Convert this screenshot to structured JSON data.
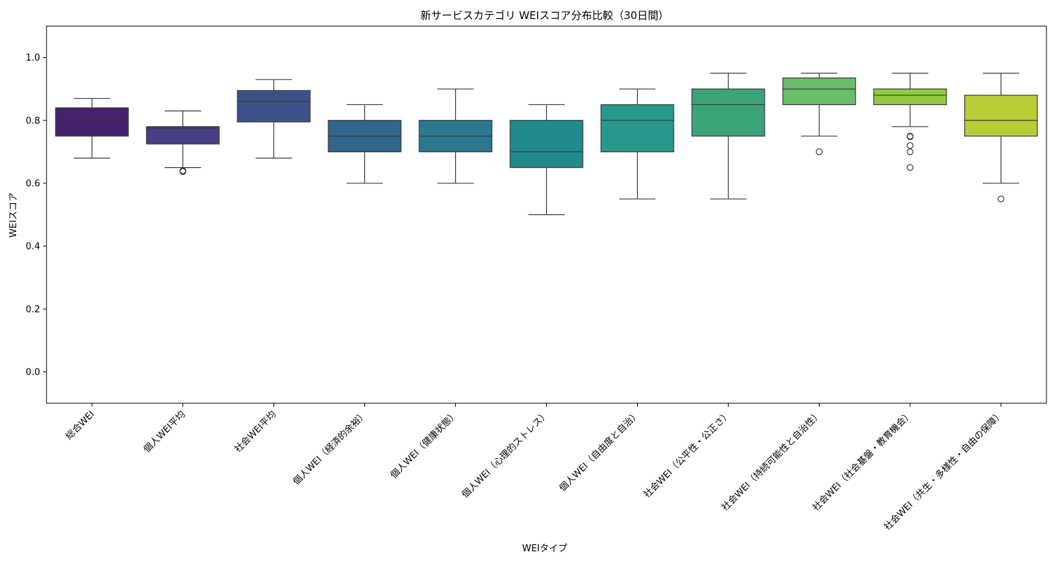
{
  "chart_data": {
    "type": "box",
    "title": "新サービスカテゴリ WEIスコア分布比較（30日間）",
    "xlabel": "WEIタイプ",
    "ylabel": "WEIスコア",
    "ylim": [
      -0.1,
      1.1
    ],
    "yticks": [
      "0.0",
      "0.2",
      "0.4",
      "0.6",
      "0.8",
      "1.0"
    ],
    "grid": false,
    "categories": [
      "総合WEI",
      "個人WEI平均",
      "社会WEI平均",
      "個人WEI（経済的余裕）",
      "個人WEI（健康状態）",
      "個人WEI（心理的ストレス）",
      "個人WEI（自由度と自治）",
      "社会WEI（公平性・公正さ）",
      "社会WEI（持続可能性と自治性）",
      "社会WEI（社会基盤・教育機会）",
      "社会WEI（共生・多様性・自由の保障）"
    ],
    "colors": [
      "#45216e",
      "#453f86",
      "#3d5188",
      "#32668c",
      "#2b788e",
      "#218a8c",
      "#27998a",
      "#3ba479",
      "#69be6b",
      "#90c93f",
      "#b9cd36"
    ],
    "boxes": [
      {
        "whisker_low": 0.68,
        "q1": 0.75,
        "median": 0.81,
        "q3": 0.84,
        "whisker_high": 0.87,
        "outliers": []
      },
      {
        "whisker_low": 0.65,
        "q1": 0.725,
        "median": 0.775,
        "q3": 0.78,
        "whisker_high": 0.83,
        "outliers": [
          0.64,
          0.637
        ]
      },
      {
        "whisker_low": 0.68,
        "q1": 0.795,
        "median": 0.86,
        "q3": 0.895,
        "whisker_high": 0.93,
        "outliers": []
      },
      {
        "whisker_low": 0.6,
        "q1": 0.7,
        "median": 0.75,
        "q3": 0.8,
        "whisker_high": 0.85,
        "outliers": []
      },
      {
        "whisker_low": 0.6,
        "q1": 0.7,
        "median": 0.75,
        "q3": 0.8,
        "whisker_high": 0.9,
        "outliers": []
      },
      {
        "whisker_low": 0.5,
        "q1": 0.65,
        "median": 0.7,
        "q3": 0.8,
        "whisker_high": 0.85,
        "outliers": []
      },
      {
        "whisker_low": 0.55,
        "q1": 0.7,
        "median": 0.8,
        "q3": 0.85,
        "whisker_high": 0.9,
        "outliers": []
      },
      {
        "whisker_low": 0.55,
        "q1": 0.75,
        "median": 0.85,
        "q3": 0.9,
        "whisker_high": 0.95,
        "outliers": []
      },
      {
        "whisker_low": 0.75,
        "q1": 0.85,
        "median": 0.9,
        "q3": 0.935,
        "whisker_high": 0.95,
        "outliers": [
          0.7
        ]
      },
      {
        "whisker_low": 0.78,
        "q1": 0.85,
        "median": 0.88,
        "q3": 0.9,
        "whisker_high": 0.95,
        "outliers": [
          0.75,
          0.748,
          0.72,
          0.7,
          0.65
        ]
      },
      {
        "whisker_low": 0.6,
        "q1": 0.75,
        "median": 0.8,
        "q3": 0.88,
        "whisker_high": 0.95,
        "outliers": [
          0.55
        ]
      }
    ]
  }
}
